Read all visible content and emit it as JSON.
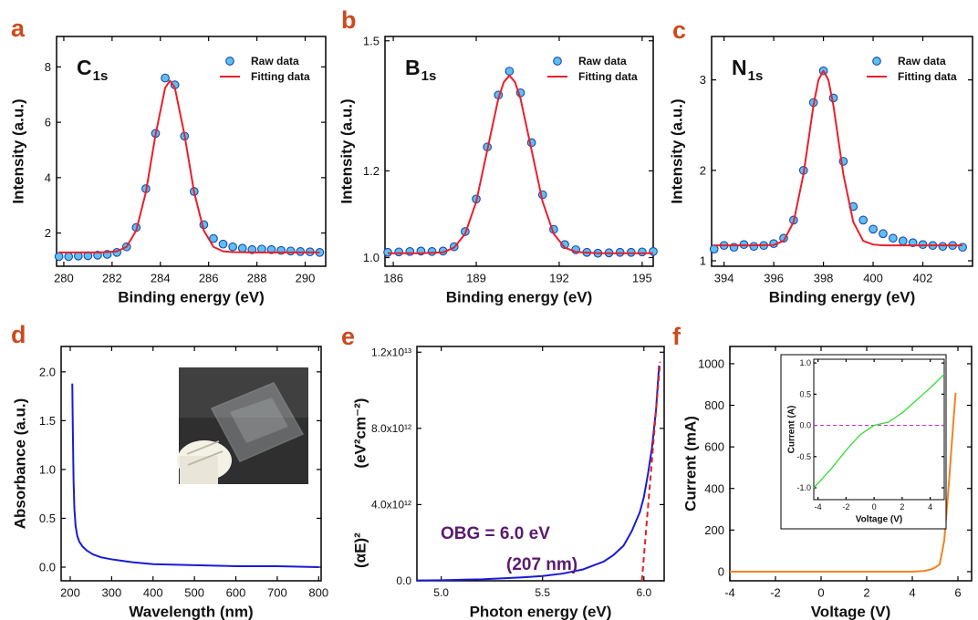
{
  "chart_data": [
    {
      "type": "line",
      "label": "a",
      "xlabel": "Binding energy (eV)",
      "ylabel": "Intensity (a.u.)",
      "annotation": {
        "main": "C",
        "sub": "1s"
      },
      "xlim": [
        279.7,
        290.85
      ],
      "xticks": [
        280,
        282,
        284,
        286,
        288,
        290
      ],
      "ylim": [
        0.8,
        9.1
      ],
      "yticks": [
        2,
        4,
        6,
        8
      ],
      "legend": "upper right",
      "series": [
        {
          "name": "Raw data",
          "style": "markers",
          "color": "#5cc0f0",
          "edgecolor": "#1e44b0",
          "x": [
            279.8,
            280.2,
            280.6,
            281.0,
            281.4,
            281.8,
            282.2,
            282.6,
            283.0,
            283.4,
            283.8,
            284.2,
            284.6,
            285.0,
            285.4,
            285.8,
            286.2,
            286.6,
            287.0,
            287.4,
            287.8,
            288.2,
            288.6,
            289.0,
            289.4,
            289.8,
            290.2,
            290.6
          ],
          "values": [
            1.15,
            1.15,
            1.17,
            1.18,
            1.2,
            1.23,
            1.3,
            1.5,
            2.2,
            3.6,
            5.6,
            7.6,
            7.35,
            5.5,
            3.5,
            2.3,
            1.8,
            1.6,
            1.5,
            1.45,
            1.4,
            1.42,
            1.4,
            1.37,
            1.35,
            1.33,
            1.32,
            1.3
          ]
        },
        {
          "name": "Fitting data",
          "style": "line",
          "color": "#e8202a",
          "x": [
            279.8,
            280.6,
            281.4,
            281.8,
            282.2,
            282.6,
            283.0,
            283.4,
            283.8,
            284.2,
            284.4,
            284.6,
            285.0,
            285.4,
            285.8,
            286.2,
            286.6,
            287.0,
            288.0,
            289.0,
            290.6
          ],
          "values": [
            1.3,
            1.3,
            1.3,
            1.31,
            1.34,
            1.5,
            2.09,
            3.47,
            5.55,
            7.25,
            7.5,
            7.25,
            5.55,
            3.47,
            2.09,
            1.5,
            1.34,
            1.31,
            1.3,
            1.3,
            1.3
          ]
        }
      ]
    },
    {
      "type": "line",
      "label": "b",
      "xlabel": "Binding energy (eV)",
      "ylabel": "Intensity (a.u.)",
      "annotation": {
        "main": "B",
        "sub": "1s"
      },
      "xlim": [
        185.7,
        195.4
      ],
      "xticks": [
        186,
        189,
        192,
        195
      ],
      "ylim": [
        0.98,
        1.51
      ],
      "yticks": [
        {
          "value": 1.0,
          "label": "1.0"
        },
        1.2,
        1.5
      ],
      "legend": "upper right",
      "series": [
        {
          "name": "Raw data",
          "style": "markers",
          "color": "#5cc0f0",
          "edgecolor": "#1e44b0",
          "x": [
            185.8,
            186.2,
            186.6,
            187.0,
            187.4,
            187.8,
            188.2,
            188.6,
            189.0,
            189.4,
            189.8,
            190.2,
            190.6,
            191.0,
            191.4,
            191.8,
            192.2,
            192.6,
            193.0,
            193.4,
            193.8,
            194.2,
            194.6,
            195.0,
            195.4
          ],
          "values": [
            1.012,
            1.013,
            1.014,
            1.015,
            1.014,
            1.015,
            1.025,
            1.06,
            1.135,
            1.255,
            1.375,
            1.43,
            1.38,
            1.265,
            1.145,
            1.065,
            1.03,
            1.018,
            1.012,
            1.01,
            1.011,
            1.012,
            1.012,
            1.013,
            1.014
          ]
        },
        {
          "name": "Fitting data",
          "style": "line",
          "color": "#e8202a",
          "x": [
            185.8,
            187.0,
            187.8,
            188.2,
            188.6,
            189.0,
            189.4,
            189.8,
            190.0,
            190.2,
            190.4,
            190.6,
            191.0,
            191.4,
            191.8,
            192.2,
            192.6,
            193.4,
            195.4
          ],
          "values": [
            1.01,
            1.01,
            1.012,
            1.023,
            1.055,
            1.129,
            1.248,
            1.367,
            1.405,
            1.42,
            1.405,
            1.367,
            1.248,
            1.129,
            1.055,
            1.023,
            1.013,
            1.01,
            1.01
          ]
        }
      ]
    },
    {
      "type": "line",
      "label": "c",
      "xlabel": "Binding energy (eV)",
      "ylabel": "Intensity (a.u.)",
      "annotation": {
        "main": "N",
        "sub": "1s"
      },
      "xlim": [
        393.5,
        404.0
      ],
      "xticks": [
        394,
        396,
        398,
        400,
        402
      ],
      "ylim": [
        0.94,
        3.48
      ],
      "yticks": [
        1,
        2,
        3
      ],
      "legend": "upper right",
      "series": [
        {
          "name": "Raw data",
          "style": "markers",
          "color": "#5cc0f0",
          "edgecolor": "#1e44b0",
          "x": [
            393.6,
            394.0,
            394.4,
            394.8,
            395.2,
            395.6,
            396.0,
            396.4,
            396.8,
            397.2,
            397.6,
            398.0,
            398.4,
            398.8,
            399.2,
            399.6,
            400.0,
            400.4,
            400.8,
            401.2,
            401.6,
            402.0,
            402.4,
            402.8,
            403.2,
            403.6
          ],
          "values": [
            1.13,
            1.17,
            1.15,
            1.18,
            1.16,
            1.17,
            1.19,
            1.25,
            1.45,
            2.0,
            2.75,
            3.1,
            2.8,
            2.1,
            1.6,
            1.45,
            1.35,
            1.3,
            1.25,
            1.22,
            1.2,
            1.18,
            1.17,
            1.16,
            1.17,
            1.15
          ]
        },
        {
          "name": "Fitting data",
          "style": "line",
          "color": "#e8202a",
          "x": [
            393.6,
            395.0,
            396.0,
            396.4,
            396.8,
            397.2,
            397.6,
            397.8,
            398.0,
            398.2,
            398.4,
            398.8,
            399.2,
            399.6,
            400.0,
            400.4,
            401.5,
            403.6
          ],
          "values": [
            1.17,
            1.17,
            1.175,
            1.22,
            1.43,
            1.96,
            2.72,
            3.0,
            3.1,
            3.0,
            2.72,
            1.96,
            1.43,
            1.22,
            1.18,
            1.17,
            1.17,
            1.17
          ]
        }
      ]
    },
    {
      "type": "line",
      "label": "d",
      "xlabel": "Wavelength (nm)",
      "ylabel": "Absorbance (a.u.)",
      "xlim": [
        178,
        806
      ],
      "xticks": [
        200,
        300,
        400,
        500,
        600,
        700,
        800
      ],
      "ylim": [
        -0.14,
        2.26
      ],
      "yticks": [
        {
          "value": 0,
          "label": "0.0"
        },
        0.5,
        {
          "value": 1,
          "label": "1.0"
        },
        1.5,
        {
          "value": 2,
          "label": "2.0"
        }
      ],
      "series": [
        {
          "style": "line",
          "color": "#1a1ad6",
          "x": [
            205,
            206,
            208,
            210,
            213,
            217,
            222,
            230,
            240,
            255,
            275,
            300,
            350,
            400,
            500,
            600,
            700,
            800
          ],
          "values": [
            1.88,
            1.5,
            0.9,
            0.6,
            0.42,
            0.32,
            0.26,
            0.21,
            0.17,
            0.13,
            0.1,
            0.08,
            0.05,
            0.03,
            0.02,
            0.01,
            0.01,
            0.0
          ]
        }
      ]
    },
    {
      "type": "line",
      "label": "e",
      "xlabel": "Photon energy (eV)",
      "ylabel": [
        "(αE)²",
        "(eV²cm⁻²)"
      ],
      "annotation": [
        "OBG = 6.0 eV",
        "(207 nm)"
      ],
      "annotation_color": "#5a1a6e",
      "xlim": [
        4.88,
        6.1
      ],
      "xticks": [
        {
          "value": 5,
          "label": "5.0"
        },
        5.5,
        {
          "value": 6,
          "label": "6.0"
        }
      ],
      "ylim": [
        0,
        12300000000000
      ],
      "yticks": [
        {
          "value": 0,
          "label": "0.0"
        },
        {
          "value": 4000000000000,
          "label": "4.0x10¹²"
        },
        {
          "value": 8000000000000,
          "label": "8.0x10¹²"
        },
        {
          "value": 12000000000000,
          "label": "1.2x10¹³"
        }
      ],
      "series": [
        {
          "style": "line",
          "color": "#1a1ad6",
          "x": [
            4.88,
            5.0,
            5.2,
            5.4,
            5.5,
            5.6,
            5.7,
            5.8,
            5.85,
            5.9,
            5.94,
            5.98,
            6.0,
            6.02,
            6.04,
            6.06,
            6.075
          ],
          "values": [
            20000000000,
            30000000000,
            80000000000,
            180000000000,
            250000000000,
            380000000000,
            600000000000,
            1000000000000,
            1350000000000,
            1850000000000,
            2600000000000,
            3600000000000,
            4400000000000,
            5600000000000,
            7000000000000,
            9000000000000,
            11300000000000
          ]
        },
        {
          "style": "dashed",
          "color": "#e02020",
          "x": [
            5.99,
            6.08
          ],
          "values": [
            0,
            11500000000000
          ]
        }
      ]
    },
    {
      "type": "line",
      "label": "f",
      "xlabel": "Voltage (V)",
      "ylabel": "Current (mA)",
      "xlim": [
        -4,
        6.6
      ],
      "xticks": [
        -4,
        -2,
        0,
        2,
        4,
        6
      ],
      "ylim": [
        -44,
        1083
      ],
      "yticks": [
        0,
        200,
        400,
        600,
        800,
        1000
      ],
      "series": [
        {
          "style": "line",
          "color": "#f58220",
          "x": [
            -4,
            -2,
            0,
            2,
            4,
            4.5,
            4.8,
            5.0,
            5.2,
            5.4,
            5.6,
            5.8,
            5.9
          ],
          "values": [
            0,
            0,
            0,
            0,
            0,
            3,
            10,
            20,
            35,
            150,
            420,
            720,
            860
          ]
        }
      ],
      "inset": {
        "type": "line",
        "xlabel": "Voltage (V)",
        "ylabel": "Current (A)",
        "xlim": [
          -4.3,
          5.0
        ],
        "xticks": [
          -4,
          -2,
          0,
          2,
          4
        ],
        "ylim": [
          -1.19,
          1.06
        ],
        "yticks": [
          {
            "value": -1,
            "label": "-1.0"
          },
          -0.5,
          {
            "value": 0,
            "label": "0.0"
          },
          0.5,
          {
            "value": 1,
            "label": "1.0"
          }
        ],
        "hline": {
          "value": 0,
          "color": "#cc33cc"
        },
        "series": [
          {
            "style": "line",
            "color": "#33dd33",
            "x": [
              -4.3,
              -4,
              -3,
              -2,
              -1,
              0,
              1,
              2,
              3,
              4,
              5
            ],
            "values": [
              -1.0,
              -0.93,
              -0.68,
              -0.4,
              -0.15,
              0,
              0.05,
              0.2,
              0.4,
              0.6,
              0.82
            ]
          }
        ]
      }
    }
  ]
}
